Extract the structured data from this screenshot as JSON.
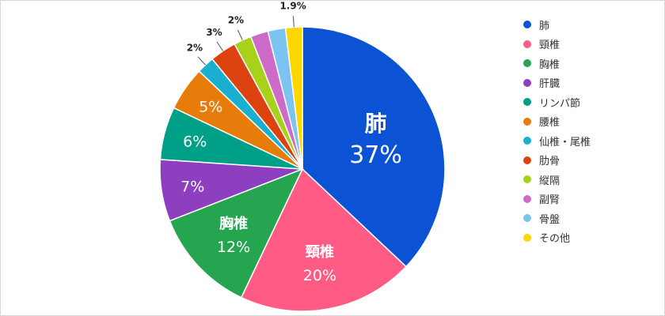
{
  "chart_data": {
    "type": "pie",
    "categories": [
      "肺",
      "頸椎",
      "胸椎",
      "肝臓",
      "リンパ節",
      "腰椎",
      "仙椎・尾椎",
      "肋骨",
      "縦隔",
      "副腎",
      "骨盤",
      "その他"
    ],
    "values": [
      37,
      20,
      12,
      7,
      6,
      5,
      2,
      3,
      2,
      2,
      2,
      1.9
    ],
    "value_labels": [
      "37%",
      "20%",
      "12%",
      "7%",
      "6%",
      "5%",
      "2%",
      "3%",
      "2%",
      "",
      "",
      "1.9%"
    ],
    "colors": [
      "#0B53D4",
      "#FF5B85",
      "#26A550",
      "#8E3FBF",
      "#00A088",
      "#E87C0A",
      "#1AAFD0",
      "#DC4311",
      "#A8D11B",
      "#CE6BC9",
      "#7BC4F2",
      "#FFD700"
    ],
    "legend_position": "right",
    "start_angle_deg": 0,
    "direction": "clockwise"
  }
}
